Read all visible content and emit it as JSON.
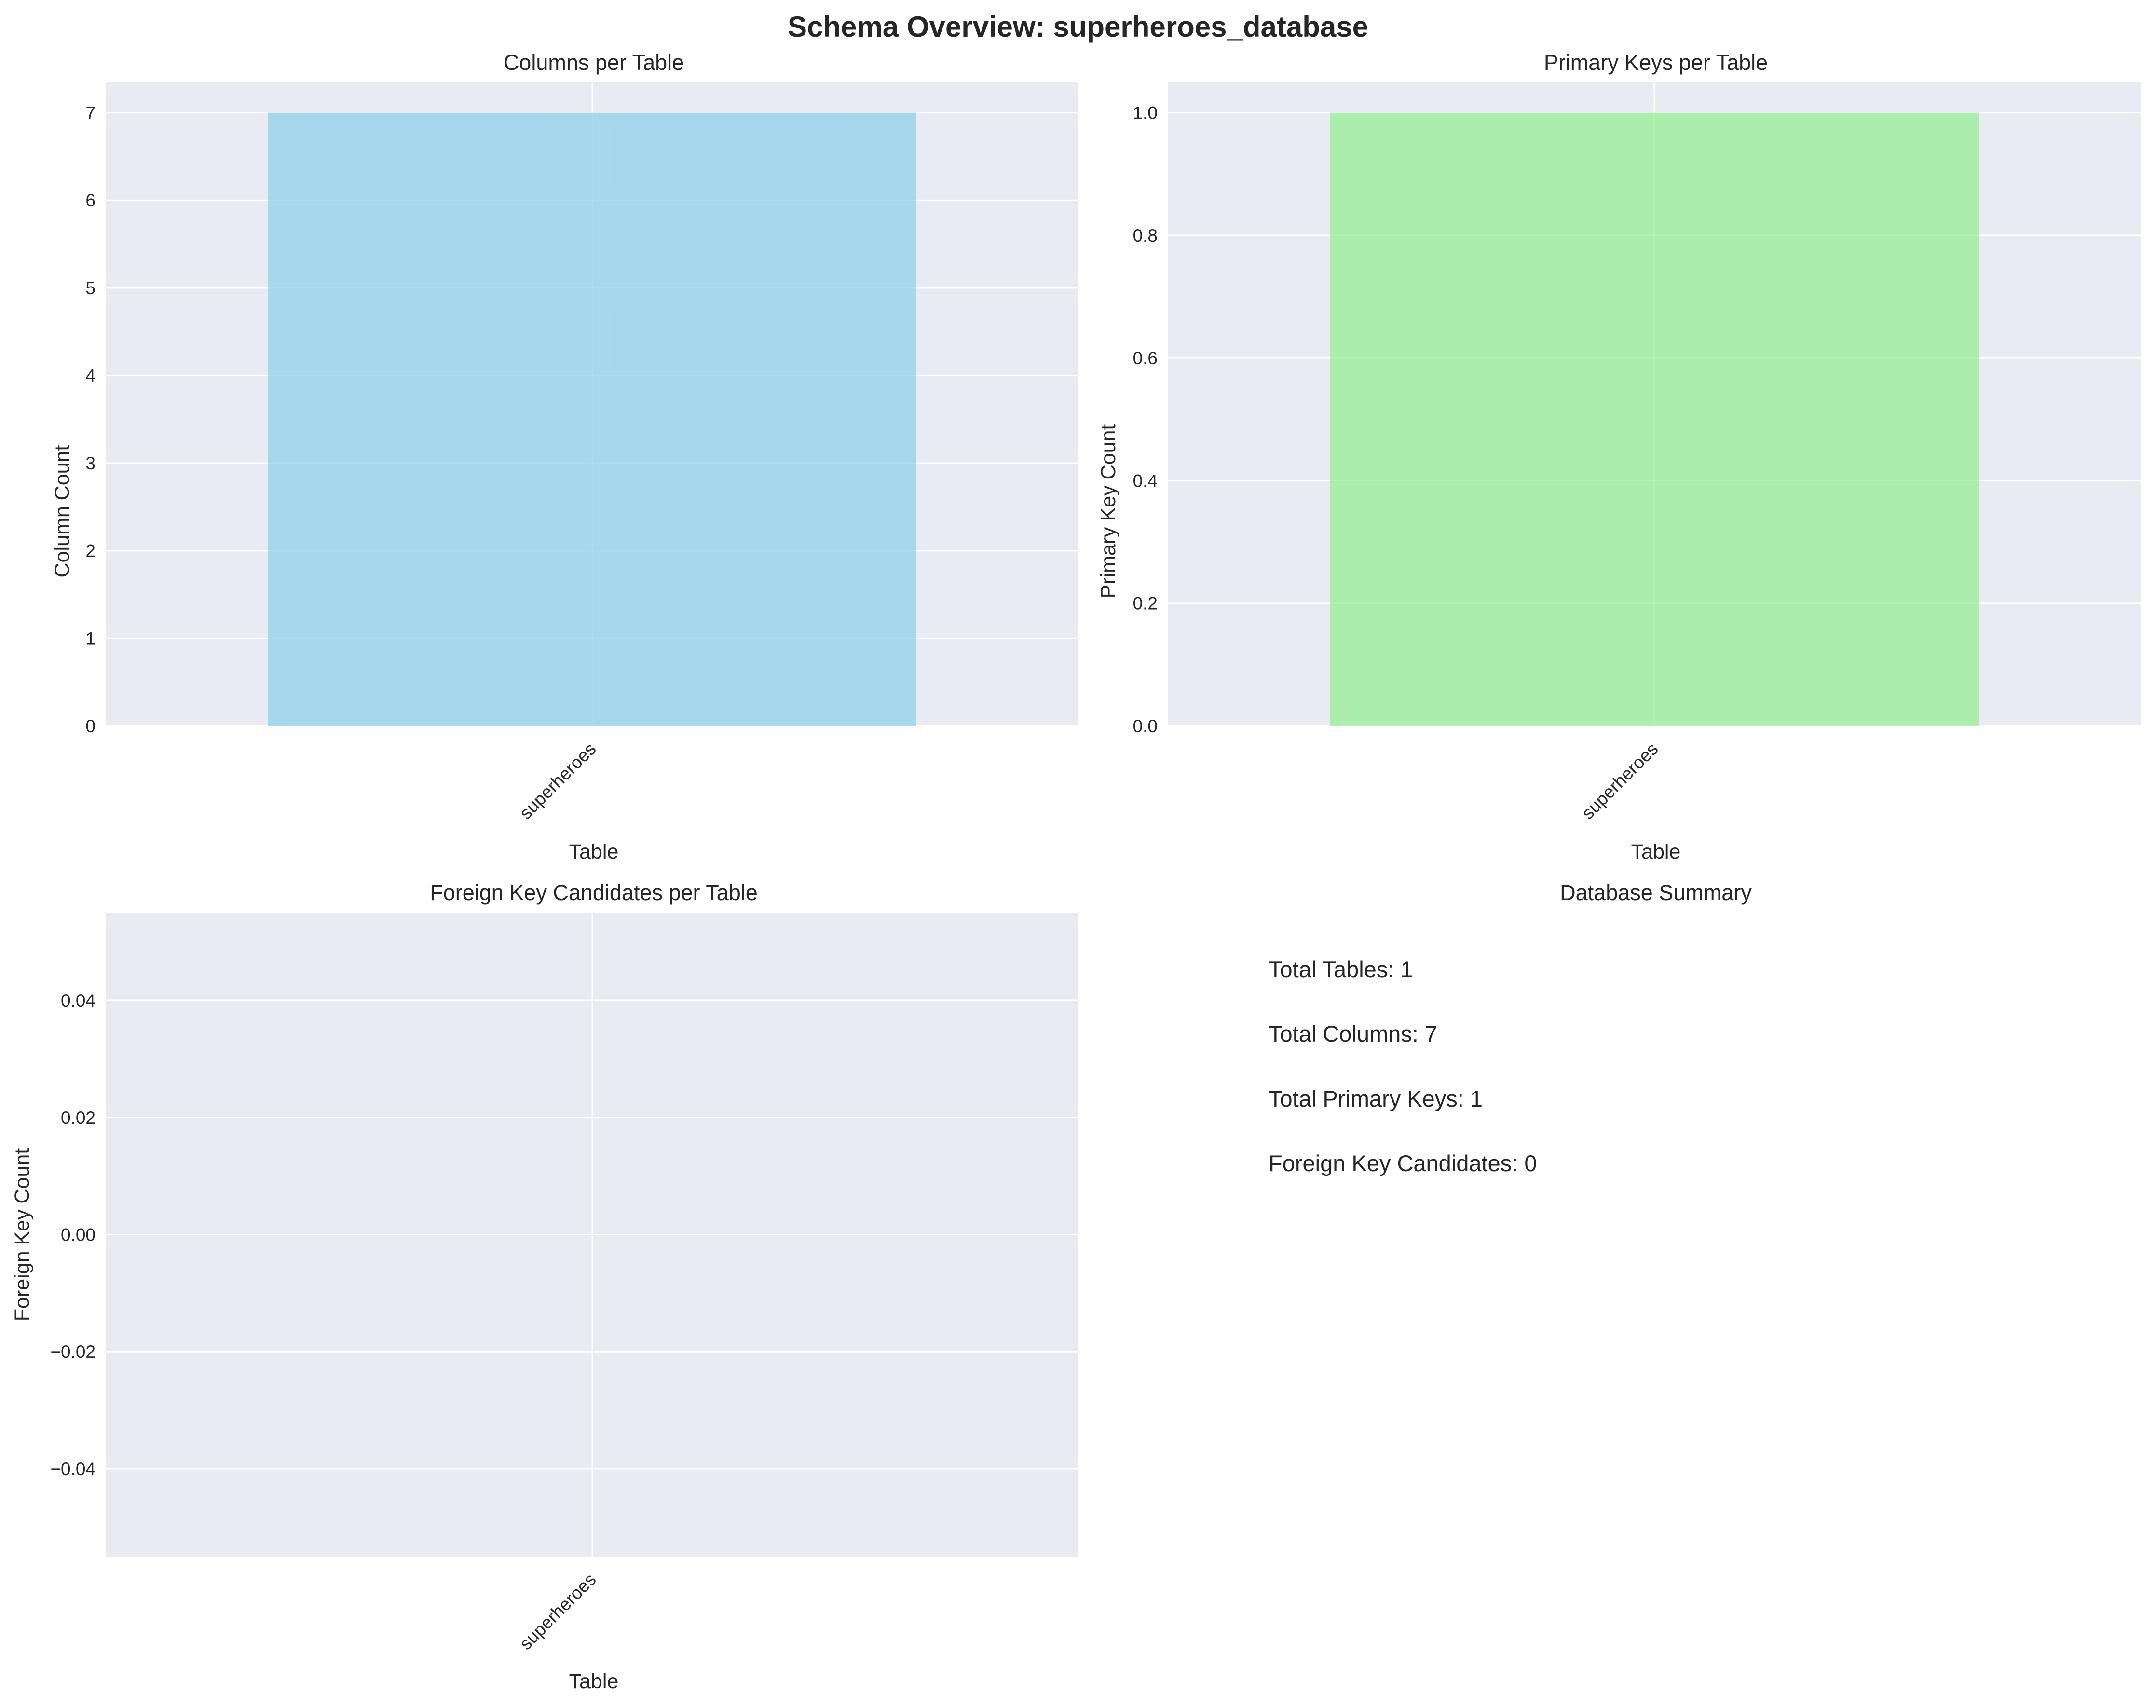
{
  "figure": {
    "title": "Schema Overview: superheroes_database",
    "background": "#ffffff",
    "axes_background": "#eaeaf2",
    "grid_color": "#ffffff",
    "text_color": "#262626"
  },
  "chart_data": [
    {
      "type": "bar",
      "title": "Columns per Table",
      "xlabel": "Table",
      "ylabel": "Column Count",
      "categories": [
        "superheroes"
      ],
      "values": [
        7
      ],
      "ylim": [
        0,
        7.35
      ],
      "yticks": [
        0,
        1,
        2,
        3,
        4,
        5,
        6,
        7
      ],
      "ytick_labels": [
        "0",
        "1",
        "2",
        "3",
        "4",
        "5",
        "6",
        "7"
      ],
      "color": "#87ceeb",
      "opacity": 0.7,
      "grid": true
    },
    {
      "type": "bar",
      "title": "Primary Keys per Table",
      "xlabel": "Table",
      "ylabel": "Primary Key Count",
      "categories": [
        "superheroes"
      ],
      "values": [
        1
      ],
      "ylim": [
        0,
        1.05
      ],
      "yticks": [
        0,
        0.2,
        0.4,
        0.6,
        0.8,
        1.0
      ],
      "ytick_labels": [
        "0.0",
        "0.2",
        "0.4",
        "0.6",
        "0.8",
        "1.0"
      ],
      "color": "#90ee90",
      "opacity": 0.7,
      "grid": true
    },
    {
      "type": "bar",
      "title": "Foreign Key Candidates per Table",
      "xlabel": "Table",
      "ylabel": "Foreign Key Count",
      "categories": [
        "superheroes"
      ],
      "values": [
        0
      ],
      "ylim": [
        -0.055,
        0.055
      ],
      "yticks": [
        -0.04,
        -0.02,
        0,
        0.02,
        0.04
      ],
      "ytick_labels": [
        "−0.04",
        "−0.02",
        "0.00",
        "0.02",
        "0.04"
      ],
      "color": "#f08080",
      "opacity": 0.7,
      "grid": true
    }
  ],
  "summary": {
    "title": "Database Summary",
    "lines": [
      "Total Tables: 1",
      "Total Columns: 7",
      "Total Primary Keys: 1",
      "Foreign Key Candidates: 0"
    ]
  }
}
